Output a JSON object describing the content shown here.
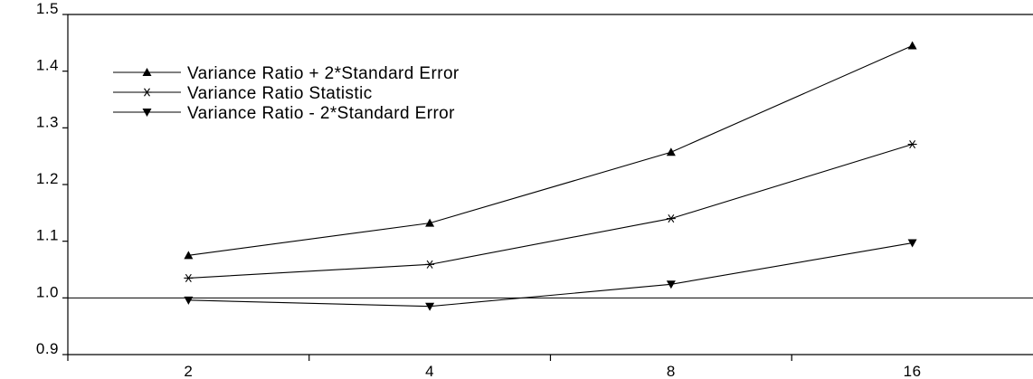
{
  "chart_data": {
    "type": "line",
    "categories": [
      "2",
      "4",
      "8",
      "16"
    ],
    "series": [
      {
        "name": "Variance Ratio + 2*Standard Error",
        "marker": "triangle-up",
        "values": [
          1.075,
          1.132,
          1.257,
          1.445
        ]
      },
      {
        "name": "Variance Ratio Statistic",
        "marker": "asterisk",
        "values": [
          1.035,
          1.059,
          1.14,
          1.271
        ]
      },
      {
        "name": "Variance Ratio - 2*Standard Error",
        "marker": "triangle-down",
        "values": [
          0.996,
          0.985,
          1.024,
          1.097
        ]
      }
    ],
    "yticks": [
      "0.9",
      "1.0",
      "1.1",
      "1.2",
      "1.3",
      "1.4",
      "1.5"
    ],
    "ylim": [
      0.9,
      1.5
    ],
    "reference_line": 1.0,
    "legend_position": "top-left",
    "grid": false,
    "line_color": "#000000"
  }
}
